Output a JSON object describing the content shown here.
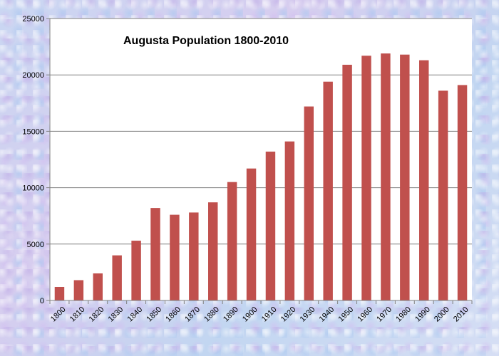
{
  "chart_data": {
    "type": "bar",
    "title": "Augusta Population 1800-2010",
    "xlabel": "",
    "ylabel": "",
    "categories": [
      "1800",
      "1810",
      "1820",
      "1830",
      "1840",
      "1850",
      "1860",
      "1870",
      "1880",
      "1890",
      "1900",
      "1910",
      "1920",
      "1930",
      "1940",
      "1950",
      "1960",
      "1970",
      "1980",
      "1990",
      "2000",
      "2010"
    ],
    "values": [
      1200,
      1800,
      2400,
      4000,
      5300,
      8200,
      7600,
      7800,
      8700,
      10500,
      11700,
      13200,
      14100,
      17200,
      19400,
      20900,
      21700,
      21900,
      21800,
      21300,
      18600,
      19100
    ],
    "ylim": [
      0,
      25000
    ],
    "yticks": [
      "0",
      "5000",
      "10000",
      "15000",
      "20000",
      "25000"
    ],
    "grid": true,
    "legend": "none",
    "colors": {
      "bar": "#c0504d",
      "plot_background": "#ffffff",
      "gridline": "#808080"
    }
  }
}
